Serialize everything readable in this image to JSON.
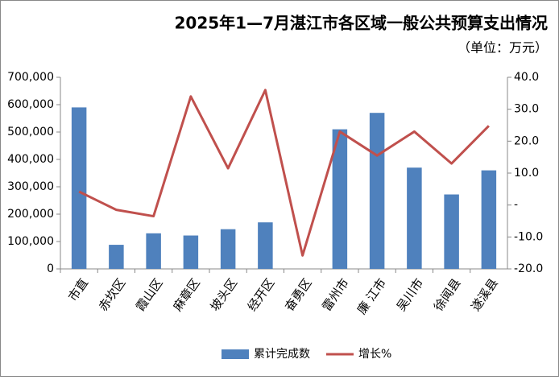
{
  "chart_data": {
    "type": "bar-line",
    "title": "2025年1—7月湛江市各区域一般公共预算支出情况",
    "subtitle": "（单位：万元）",
    "categories": [
      "市直",
      "赤坎区",
      "霞山区",
      "麻章区",
      "坡头区",
      "经开区",
      "奋勇区",
      "雷州市",
      "廉 江市",
      "吴川市",
      "徐闻县",
      "遂溪县"
    ],
    "series": [
      {
        "name": "累计完成数",
        "type": "bar",
        "color": "#4f81bd",
        "values": [
          590000,
          88000,
          130000,
          122000,
          145000,
          170000,
          null,
          510000,
          570000,
          370000,
          272000,
          360000
        ]
      },
      {
        "name": "增长%",
        "type": "line",
        "axis": "y2",
        "color": "#c0504d",
        "values": [
          4.2,
          -1.5,
          -3.5,
          34,
          11.5,
          36,
          -15.8,
          23,
          15.5,
          23,
          13,
          24.8
        ]
      }
    ],
    "ylim": [
      0,
      700000
    ],
    "yticks": [
      {
        "value": 0,
        "label": "0"
      },
      {
        "value": 100000,
        "label": "100,000"
      },
      {
        "value": 200000,
        "label": "200,000"
      },
      {
        "value": 300000,
        "label": "300,000"
      },
      {
        "value": 400000,
        "label": "400,000"
      },
      {
        "value": 500000,
        "label": "500,000"
      },
      {
        "value": 600000,
        "label": "600,000"
      },
      {
        "value": 700000,
        "label": "700,000"
      }
    ],
    "y2lim": [
      -20,
      40
    ],
    "y2ticks": [
      {
        "value": -20,
        "label": "-20.0"
      },
      {
        "value": -10,
        "label": "-10.0"
      },
      {
        "value": 0,
        "label": "-"
      },
      {
        "value": 10,
        "label": "10.0"
      },
      {
        "value": 20,
        "label": "20.0"
      },
      {
        "value": 30,
        "label": "30.0"
      },
      {
        "value": 40,
        "label": "40.0"
      }
    ],
    "grid": false,
    "legend": "bottom"
  }
}
